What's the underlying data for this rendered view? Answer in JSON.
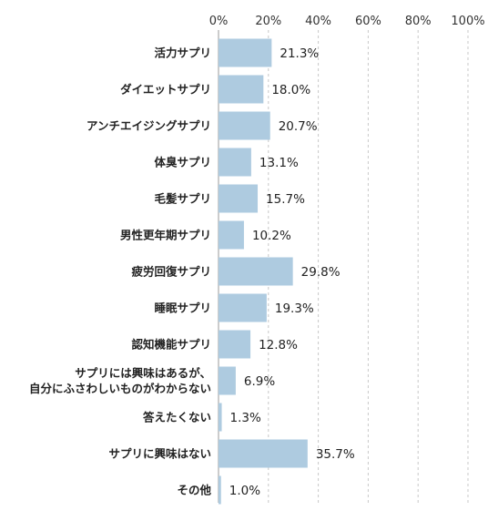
{
  "chart_data": {
    "type": "bar",
    "orientation": "horizontal",
    "title": "",
    "xlabel": "",
    "ylabel": "",
    "xlim": [
      0,
      100
    ],
    "grid": true,
    "legend": "none",
    "bar_color": "#aecbe0",
    "ticks": [
      "0%",
      "20%",
      "40%",
      "60%",
      "80%",
      "100%"
    ],
    "categories": [
      [
        "活力サプリ"
      ],
      [
        "ダイエットサプリ"
      ],
      [
        "アンチエイジングサプリ"
      ],
      [
        "体臭サプリ"
      ],
      [
        "毛髪サプリ"
      ],
      [
        "男性更年期サプリ"
      ],
      [
        "疲労回復サプリ"
      ],
      [
        "睡眠サプリ"
      ],
      [
        "認知機能サプリ"
      ],
      [
        "サプリには興味はあるが、",
        "自分にふさわしいものがわからない"
      ],
      [
        "答えたくない"
      ],
      [
        "サプリに興味はない"
      ],
      [
        "その他"
      ]
    ],
    "values": [
      21.3,
      18.0,
      20.7,
      13.1,
      15.7,
      10.2,
      29.8,
      19.3,
      12.8,
      6.9,
      1.3,
      35.7,
      1.0
    ],
    "value_labels": [
      "21.3%",
      "18.0%",
      "20.7%",
      "13.1%",
      "15.7%",
      "10.2%",
      "29.8%",
      "19.3%",
      "12.8%",
      "6.9%",
      "1.3%",
      "35.7%",
      "1.0%"
    ]
  }
}
